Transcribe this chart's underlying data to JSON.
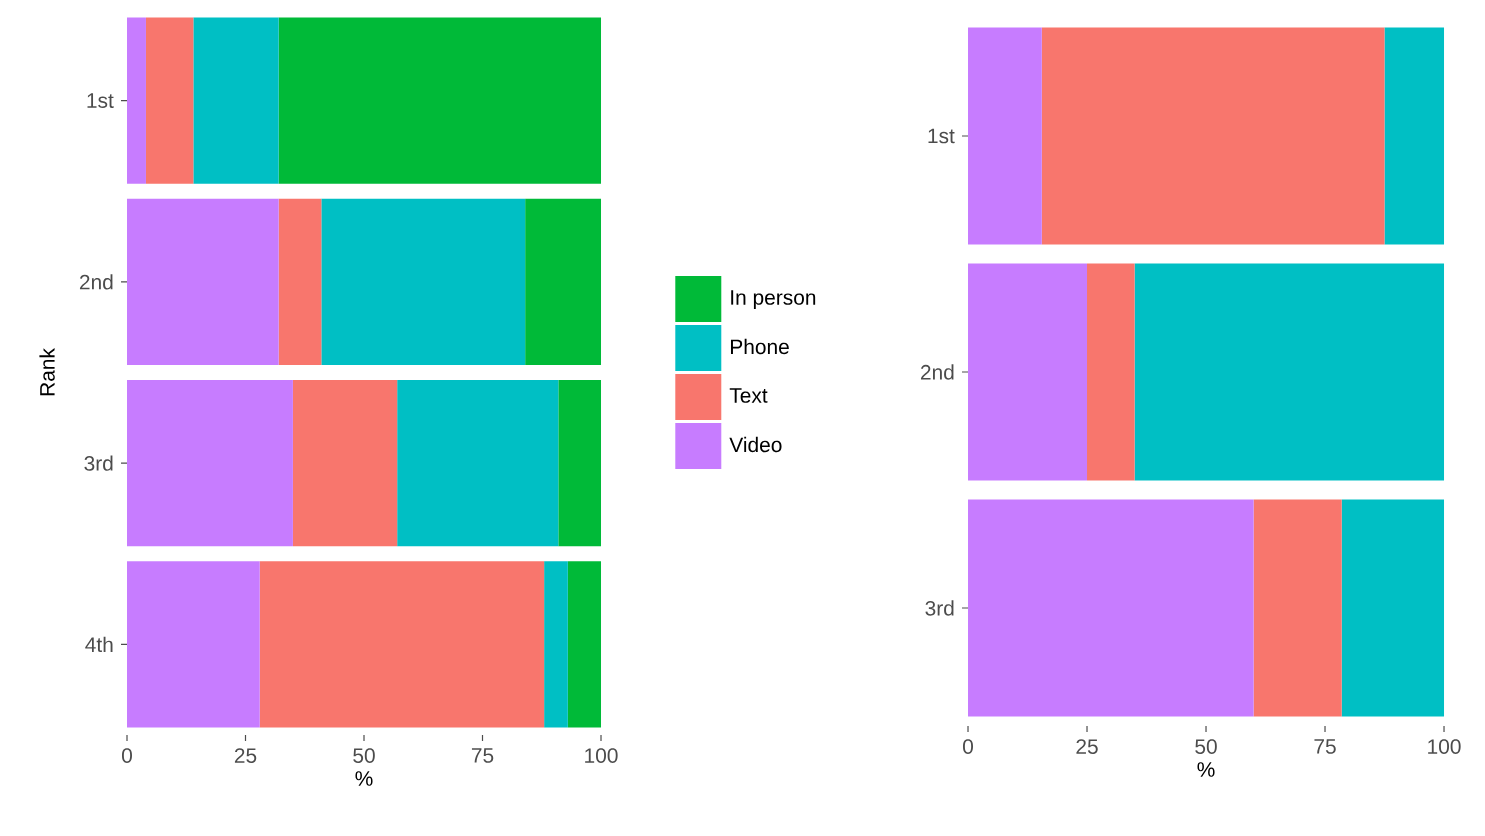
{
  "chart_data": [
    {
      "type": "bar",
      "orientation": "horizontal",
      "stacked": true,
      "ylabel": "Rank",
      "xlabel": "%",
      "categories": [
        "1st",
        "2nd",
        "3rd",
        "4th"
      ],
      "xlim": [
        0,
        100
      ],
      "xticks": [
        0,
        25,
        50,
        75,
        100
      ],
      "grid": false,
      "legend": "right",
      "series": [
        {
          "name": "Video",
          "color": "#c77cff",
          "values": [
            4,
            32,
            35,
            28
          ]
        },
        {
          "name": "Text",
          "color": "#f8766d",
          "values": [
            10,
            9,
            22,
            60
          ]
        },
        {
          "name": "Phone",
          "color": "#00bfc4",
          "values": [
            18,
            43,
            34,
            5
          ]
        },
        {
          "name": "In person",
          "color": "#00ba38",
          "values": [
            68,
            16,
            9,
            7
          ]
        }
      ]
    },
    {
      "type": "bar",
      "orientation": "horizontal",
      "stacked": true,
      "xlabel": "%",
      "categories": [
        "1st",
        "2nd",
        "3rd"
      ],
      "xlim": [
        0,
        100
      ],
      "xticks": [
        0,
        25,
        50,
        75,
        100
      ],
      "grid": false,
      "legend": false,
      "series": [
        {
          "color": "#c77cff",
          "values": [
            15.5,
            25,
            60
          ]
        },
        {
          "color": "#f8766d",
          "values": [
            72,
            10,
            18.5
          ]
        },
        {
          "color": "#00bfc4",
          "values": [
            12.5,
            65,
            21.5
          ]
        }
      ]
    }
  ]
}
